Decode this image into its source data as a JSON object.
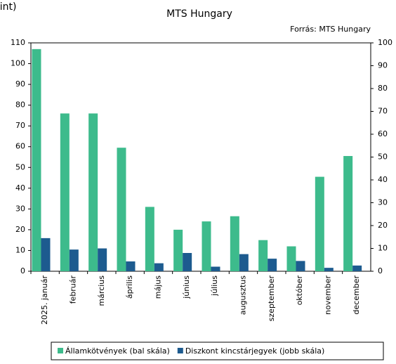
{
  "chart_data": {
    "type": "bar",
    "title": "MTS Hungary",
    "subtitle": "Forrás: MTS Hungary",
    "annotations": [
      "rint)"
    ],
    "categories": [
      "2025. január",
      "február",
      "március",
      "április",
      "május",
      "június",
      "július",
      "augusztus",
      "szeptember",
      "október",
      "november",
      "december"
    ],
    "series": [
      {
        "name": "Államkötvények (bal skála)",
        "color": "#3dbb8c",
        "values": [
          107,
          76,
          76,
          59.5,
          31,
          20,
          24,
          26.5,
          15,
          12,
          45.5,
          55.5
        ]
      },
      {
        "name": "Diszkont kincstárjegyek (jobb skála)",
        "color": "#1d5b8f",
        "axis": "y2",
        "values": [
          14.5,
          9.5,
          10,
          4.3,
          3.5,
          8,
          2,
          7.5,
          5.5,
          4.5,
          1.5,
          2.5
        ]
      }
    ],
    "ylim": [
      0,
      110
    ],
    "yticks": [
      0,
      10,
      20,
      30,
      40,
      50,
      60,
      70,
      80,
      90,
      100,
      110
    ],
    "y2lim": [
      0,
      100
    ],
    "y2ticks": [
      0,
      10,
      20,
      30,
      40,
      50,
      60,
      70,
      80,
      90,
      100
    ],
    "grid": false
  }
}
